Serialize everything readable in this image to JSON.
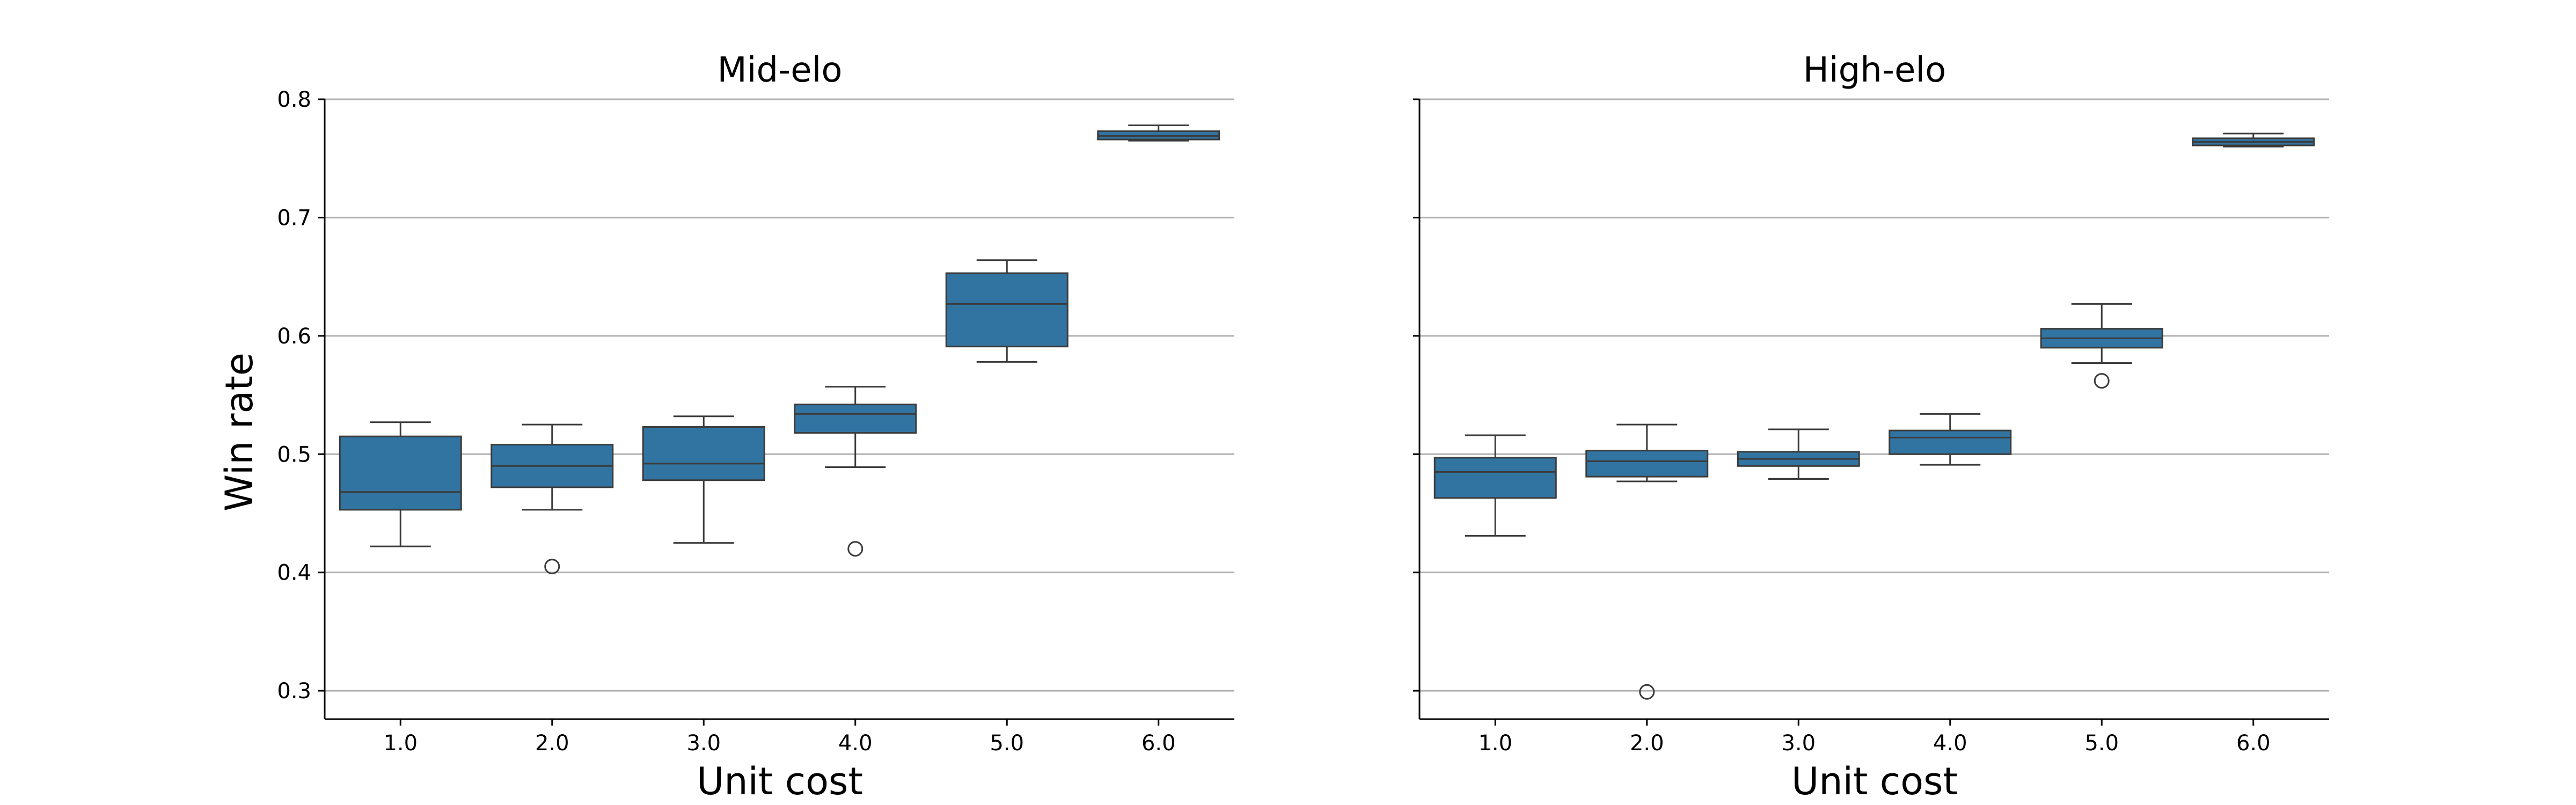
{
  "chart_data": [
    {
      "type": "box",
      "title": "Mid-elo",
      "xlabel": "Unit cost",
      "ylabel": "Win rate",
      "categories": [
        "1.0",
        "2.0",
        "3.0",
        "4.0",
        "5.0",
        "6.0"
      ],
      "ylim": [
        0.276,
        0.8
      ],
      "yticks": [
        "0.3",
        "0.4",
        "0.5",
        "0.6",
        "0.7",
        "0.8"
      ],
      "grid": "horizontal",
      "box_color": "#3274a1",
      "boxes": [
        {
          "category": "1.0",
          "whisker_low": 0.422,
          "q1": 0.453,
          "median": 0.468,
          "q3": 0.515,
          "whisker_high": 0.527,
          "outliers": []
        },
        {
          "category": "2.0",
          "whisker_low": 0.453,
          "q1": 0.472,
          "median": 0.49,
          "q3": 0.508,
          "whisker_high": 0.525,
          "outliers": [
            0.405
          ]
        },
        {
          "category": "3.0",
          "whisker_low": 0.425,
          "q1": 0.478,
          "median": 0.492,
          "q3": 0.523,
          "whisker_high": 0.532,
          "outliers": []
        },
        {
          "category": "4.0",
          "whisker_low": 0.489,
          "q1": 0.518,
          "median": 0.534,
          "q3": 0.542,
          "whisker_high": 0.557,
          "outliers": [
            0.42
          ]
        },
        {
          "category": "5.0",
          "whisker_low": 0.578,
          "q1": 0.591,
          "median": 0.627,
          "q3": 0.653,
          "whisker_high": 0.664,
          "outliers": []
        },
        {
          "category": "6.0",
          "whisker_low": 0.765,
          "q1": 0.766,
          "median": 0.769,
          "q3": 0.773,
          "whisker_high": 0.778,
          "outliers": []
        }
      ]
    },
    {
      "type": "box",
      "title": "High-elo",
      "xlabel": "Unit cost",
      "ylabel": "",
      "categories": [
        "1.0",
        "2.0",
        "3.0",
        "4.0",
        "5.0",
        "6.0"
      ],
      "ylim": [
        0.276,
        0.8
      ],
      "yticks": [],
      "grid": "horizontal",
      "box_color": "#3274a1",
      "boxes": [
        {
          "category": "1.0",
          "whisker_low": 0.431,
          "q1": 0.463,
          "median": 0.485,
          "q3": 0.497,
          "whisker_high": 0.516,
          "outliers": []
        },
        {
          "category": "2.0",
          "whisker_low": 0.477,
          "q1": 0.481,
          "median": 0.494,
          "q3": 0.503,
          "whisker_high": 0.525,
          "outliers": [
            0.299
          ]
        },
        {
          "category": "3.0",
          "whisker_low": 0.479,
          "q1": 0.49,
          "median": 0.496,
          "q3": 0.502,
          "whisker_high": 0.521,
          "outliers": []
        },
        {
          "category": "4.0",
          "whisker_low": 0.491,
          "q1": 0.5,
          "median": 0.514,
          "q3": 0.52,
          "whisker_high": 0.534,
          "outliers": []
        },
        {
          "category": "5.0",
          "whisker_low": 0.577,
          "q1": 0.59,
          "median": 0.598,
          "q3": 0.606,
          "whisker_high": 0.627,
          "outliers": [
            0.562
          ]
        },
        {
          "category": "6.0",
          "whisker_low": 0.76,
          "q1": 0.761,
          "median": 0.764,
          "q3": 0.767,
          "whisker_high": 0.771,
          "outliers": []
        }
      ]
    }
  ]
}
